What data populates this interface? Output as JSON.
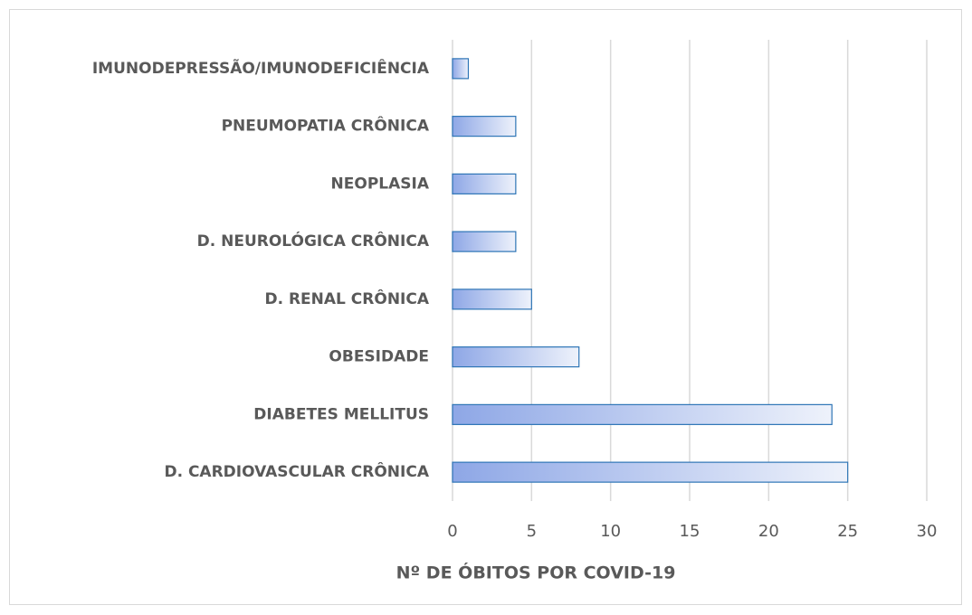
{
  "chart_data": {
    "type": "bar",
    "orientation": "horizontal",
    "categories": [
      "IMUNODEPRESSÃO/IMUNODEFICIÊNCIA",
      "PNEUMOPATIA CRÔNICA",
      "NEOPLASIA",
      "D. NEUROLÓGICA CRÔNICA",
      "D. RENAL CRÔNICA",
      "OBESIDADE",
      "DIABETES MELLITUS",
      "D. CARDIOVASCULAR CRÔNICA"
    ],
    "values": [
      1,
      4,
      4,
      4,
      5,
      8,
      24,
      25
    ],
    "color": "#2e75b6",
    "x_label": "Nº DE ÓBITOS POR COVID-19",
    "xlim": [
      0,
      30
    ],
    "xticks": [
      0,
      5,
      10,
      15,
      20,
      25,
      30
    ],
    "grid": true
  }
}
